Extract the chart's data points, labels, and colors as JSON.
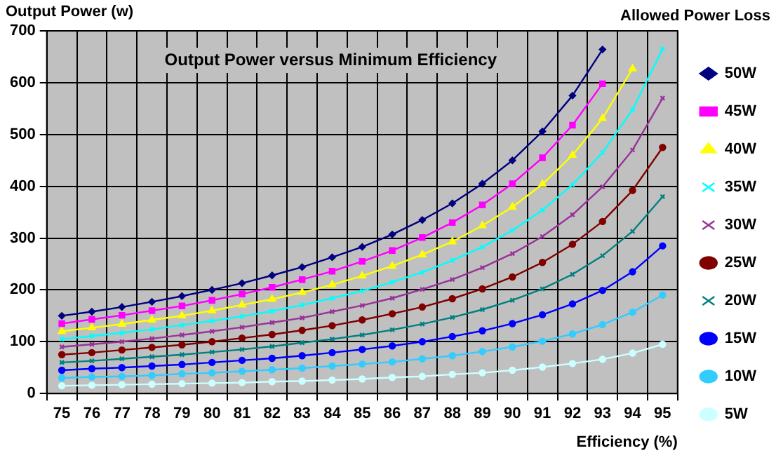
{
  "chart_data": {
    "type": "line",
    "title": "Output Power versus Minimum Efficiency",
    "xlabel": "Efficiency (%)",
    "ylabel": "Output Power (w)",
    "legend_title": "Allowed Power Loss",
    "categories": [
      "75",
      "76",
      "77",
      "78",
      "79",
      "80",
      "81",
      "82",
      "83",
      "84",
      "85",
      "86",
      "87",
      "88",
      "89",
      "90",
      "91",
      "92",
      "93",
      "94",
      "95"
    ],
    "ylim": [
      0,
      700
    ],
    "yticks": [
      0,
      100,
      200,
      300,
      400,
      500,
      600,
      700
    ],
    "grid": true,
    "legend": "right",
    "line_style": "solid",
    "series": [
      {
        "name": "50W",
        "color": "#000080",
        "marker": "diamond",
        "values": [
          150,
          158,
          167,
          177,
          188,
          200,
          213,
          228,
          244,
          263,
          283,
          307,
          335,
          367,
          405,
          450,
          506,
          575,
          664,
          null,
          null
        ]
      },
      {
        "name": "45W",
        "color": "#ff00ff",
        "marker": "square",
        "values": [
          135,
          143,
          151,
          160,
          169,
          180,
          192,
          205,
          220,
          236,
          255,
          276,
          301,
          330,
          364,
          405,
          455,
          518,
          598,
          null,
          null
        ]
      },
      {
        "name": "40W",
        "color": "#ffff00",
        "marker": "triangle",
        "values": [
          120,
          127,
          134,
          142,
          150,
          160,
          171,
          182,
          195,
          210,
          227,
          246,
          268,
          293,
          324,
          360,
          404,
          460,
          531,
          627,
          null
        ]
      },
      {
        "name": "35W",
        "color": "#00ffff",
        "marker": "cross",
        "values": [
          105,
          111,
          117,
          124,
          132,
          140,
          149,
          159,
          171,
          184,
          198,
          215,
          234,
          257,
          283,
          315,
          354,
          403,
          465,
          548,
          665
        ]
      },
      {
        "name": "30W",
        "color": "#993399",
        "marker": "cross",
        "values": [
          90,
          95,
          100,
          106,
          113,
          120,
          128,
          137,
          146,
          158,
          170,
          184,
          201,
          220,
          243,
          270,
          303,
          345,
          399,
          470,
          570
        ]
      },
      {
        "name": "25W",
        "color": "#800000",
        "marker": "circle",
        "values": [
          75,
          79,
          84,
          89,
          94,
          100,
          107,
          114,
          122,
          131,
          142,
          154,
          167,
          183,
          202,
          225,
          253,
          288,
          332,
          392,
          475
        ]
      },
      {
        "name": "20W",
        "color": "#008080",
        "marker": "cross",
        "values": [
          60,
          63,
          67,
          71,
          75,
          80,
          85,
          91,
          98,
          105,
          113,
          123,
          134,
          147,
          162,
          180,
          202,
          230,
          266,
          313,
          380
        ]
      },
      {
        "name": "15W",
        "color": "#0000ff",
        "marker": "circle",
        "values": [
          45,
          48,
          50,
          53,
          56,
          60,
          64,
          68,
          73,
          79,
          85,
          92,
          100,
          110,
          121,
          135,
          152,
          173,
          199,
          235,
          285
        ]
      },
      {
        "name": "10W",
        "color": "#33ccff",
        "marker": "circle",
        "values": [
          30,
          32,
          33,
          35,
          38,
          40,
          43,
          46,
          49,
          53,
          57,
          61,
          67,
          73,
          81,
          90,
          101,
          115,
          133,
          157,
          190
        ]
      },
      {
        "name": "5W",
        "color": "#ccffff",
        "marker": "circle",
        "values": [
          15,
          16,
          17,
          18,
          19,
          20,
          21,
          23,
          24,
          26,
          28,
          31,
          33,
          37,
          40,
          45,
          51,
          58,
          66,
          78,
          95
        ]
      }
    ]
  }
}
